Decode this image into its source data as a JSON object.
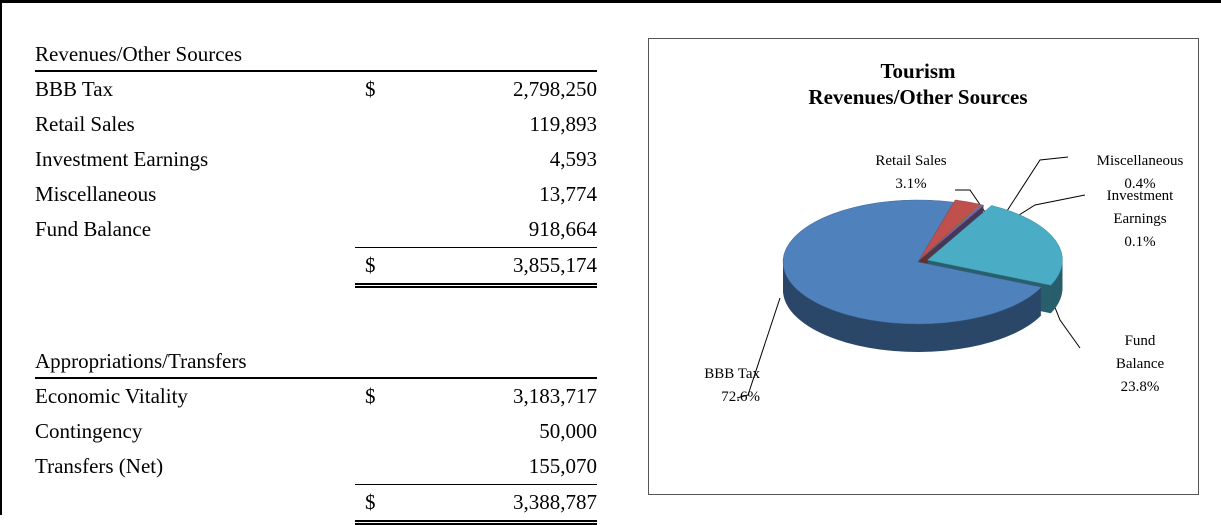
{
  "revenues": {
    "title": "Revenues/Other Sources",
    "rows": [
      [
        "BBB Tax",
        "$",
        "2,798,250"
      ],
      [
        "Retail Sales",
        "",
        "119,893"
      ],
      [
        "Investment Earnings",
        "",
        "4,593"
      ],
      [
        "Miscellaneous",
        "",
        "13,774"
      ],
      [
        "Fund Balance",
        "",
        "918,664"
      ]
    ],
    "total": [
      "$",
      "3,855,174"
    ]
  },
  "appropriations": {
    "title": "Appropriations/Transfers",
    "rows": [
      [
        "Economic Vitality",
        "$",
        "3,183,717"
      ],
      [
        "Contingency",
        "",
        "50,000"
      ],
      [
        "Transfers (Net)",
        "",
        "155,070"
      ]
    ],
    "total": [
      "$",
      "3,388,787"
    ]
  },
  "chart_data": {
    "type": "pie",
    "title": "Tourism",
    "subtitle": "Revenues/Other Sources",
    "categories": [
      "BBB Tax",
      "Retail Sales",
      "Investment Earnings",
      "Miscellaneous",
      "Fund Balance"
    ],
    "values": [
      72.6,
      3.1,
      0.1,
      0.4,
      23.8
    ],
    "value_labels": [
      "72.6%",
      "3.1%",
      "0.1%",
      "0.4%",
      "23.8%"
    ],
    "colors": [
      "#4f81bd",
      "#c0504d",
      "#9bbb59",
      "#8064a2",
      "#4bacc6"
    ]
  }
}
